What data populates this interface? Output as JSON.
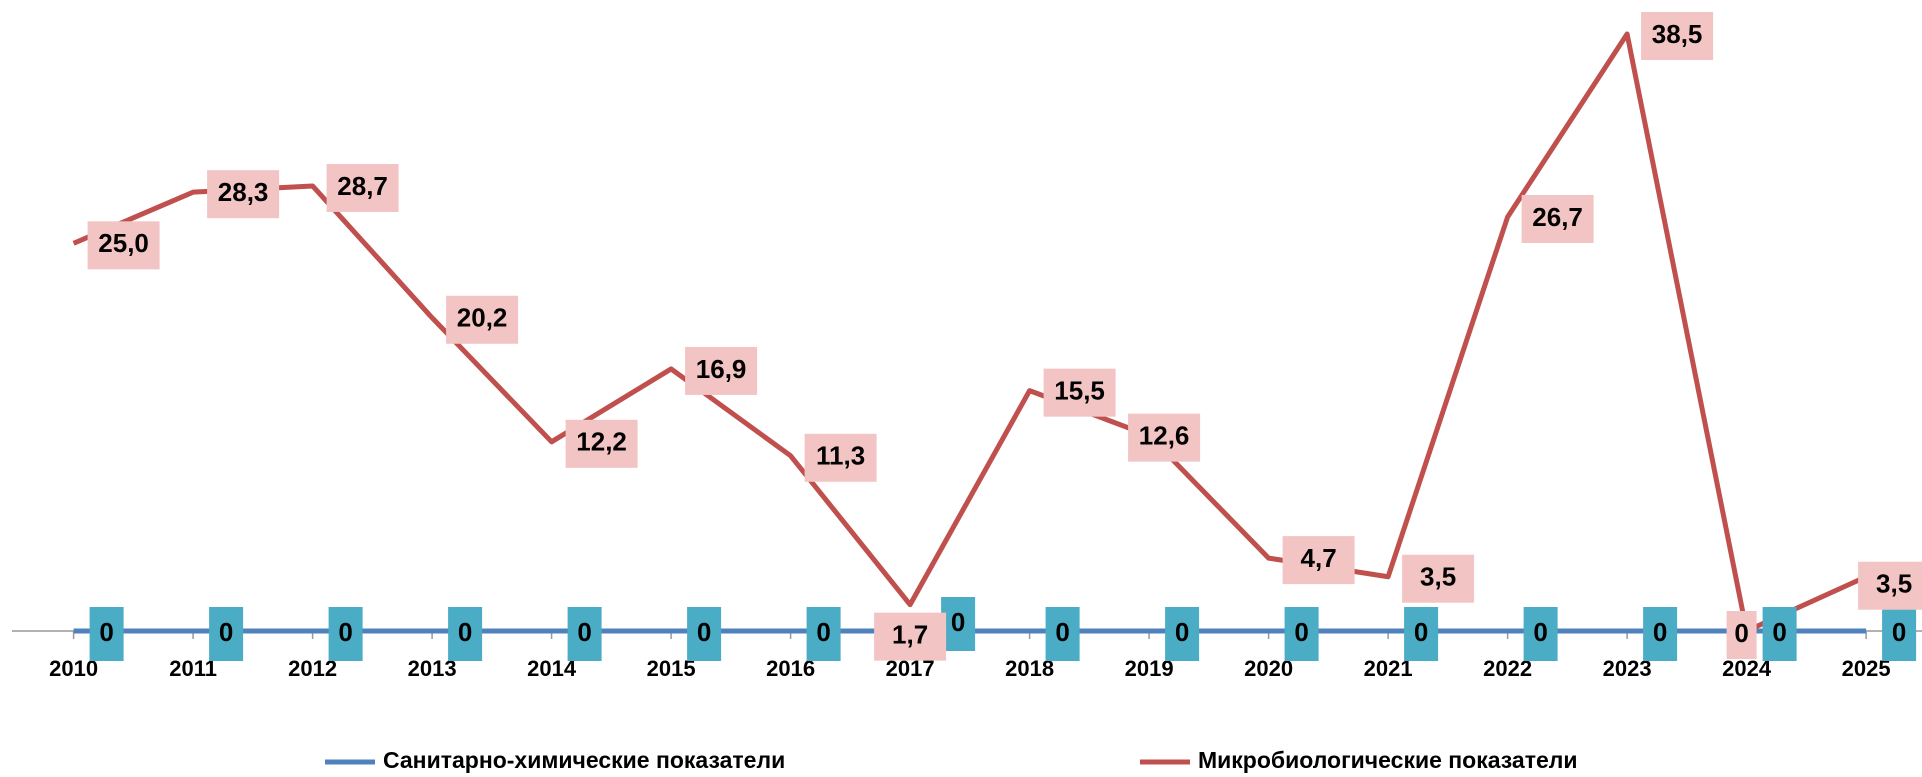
{
  "chart_data": {
    "type": "line",
    "categories": [
      "2010",
      "2011",
      "2012",
      "2013",
      "2014",
      "2015",
      "2016",
      "2017",
      "2018",
      "2019",
      "2020",
      "2021",
      "2022",
      "2023",
      "2024",
      "2025"
    ],
    "series": [
      {
        "name": "Санитарно-химические показатели",
        "color": "#4f81bd",
        "values": [
          0,
          0,
          0,
          0,
          0,
          0,
          0,
          0,
          0,
          0,
          0,
          0,
          0,
          0,
          0,
          0
        ]
      },
      {
        "name": "Микробиологические показатели",
        "color": "#c0504d",
        "values": [
          25.0,
          28.3,
          28.7,
          20.2,
          12.2,
          16.9,
          11.3,
          1.7,
          15.5,
          12.6,
          4.7,
          3.5,
          26.7,
          38.5,
          0,
          3.5
        ],
        "value_labels": [
          "25,0",
          "28,3",
          "28,7",
          "20,2",
          "12,2",
          "16,9",
          "11,3",
          "1,7",
          "15,5",
          "12,6",
          "4,7",
          "3,5",
          "26,7",
          "38,5",
          "0",
          "3,5"
        ]
      }
    ],
    "legend": "bottom"
  }
}
